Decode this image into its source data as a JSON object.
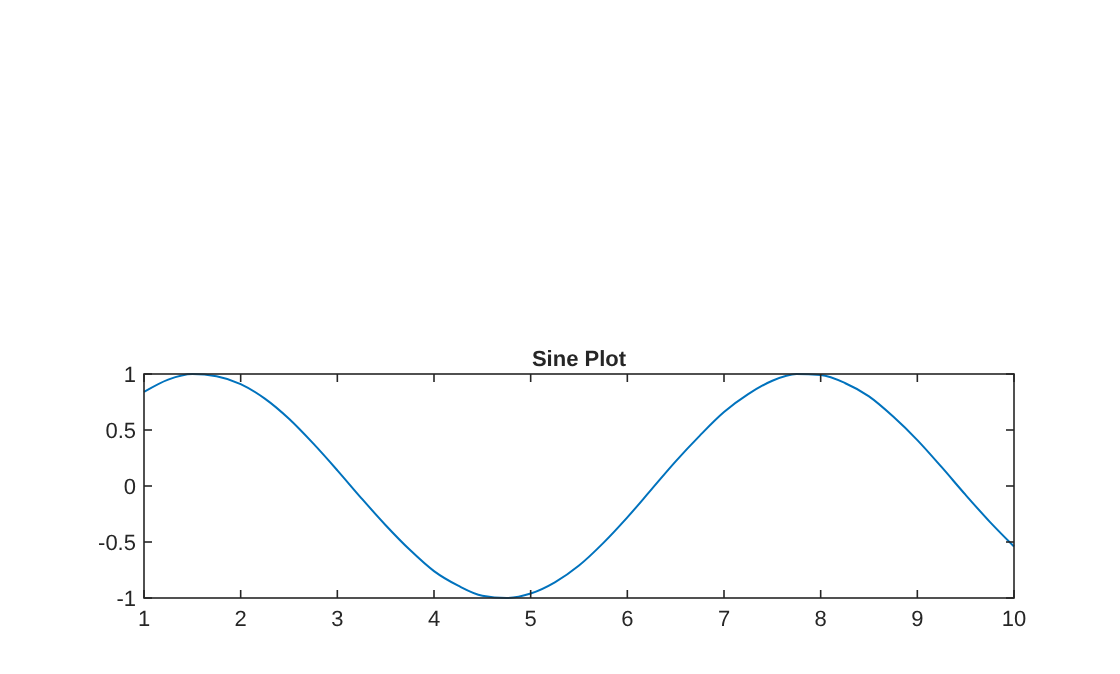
{
  "chart_data": {
    "type": "line",
    "title": "Sine Plot",
    "x": [
      1,
      1.25,
      1.5,
      1.75,
      2,
      2.25,
      2.5,
      2.75,
      3,
      3.25,
      3.5,
      3.75,
      4,
      4.25,
      4.5,
      4.75,
      5,
      5.25,
      5.5,
      5.75,
      6,
      6.25,
      6.5,
      6.75,
      7,
      7.25,
      7.5,
      7.75,
      8,
      8.25,
      8.5,
      8.75,
      9,
      9.25,
      9.5,
      9.75,
      10
    ],
    "series": [
      {
        "color": "#0072bd",
        "values": [
          0.84,
          0.95,
          1.0,
          0.98,
          0.91,
          0.78,
          0.6,
          0.38,
          0.14,
          -0.11,
          -0.35,
          -0.57,
          -0.76,
          -0.89,
          -0.98,
          -1.0,
          -0.96,
          -0.86,
          -0.71,
          -0.51,
          -0.28,
          -0.03,
          0.22,
          0.45,
          0.66,
          0.82,
          0.94,
          1.0,
          0.99,
          0.92,
          0.8,
          0.62,
          0.41,
          0.17,
          -0.08,
          -0.32,
          -0.54
        ]
      }
    ],
    "xlim": [
      1,
      10
    ],
    "xticks": [
      1,
      2,
      3,
      4,
      5,
      6,
      7,
      8,
      9,
      10
    ],
    "ylim": [
      -1,
      1
    ],
    "yticks": [
      -1,
      -0.5,
      0,
      0.5,
      1
    ],
    "grid": false,
    "marker": "none",
    "line_style": "solid"
  }
}
